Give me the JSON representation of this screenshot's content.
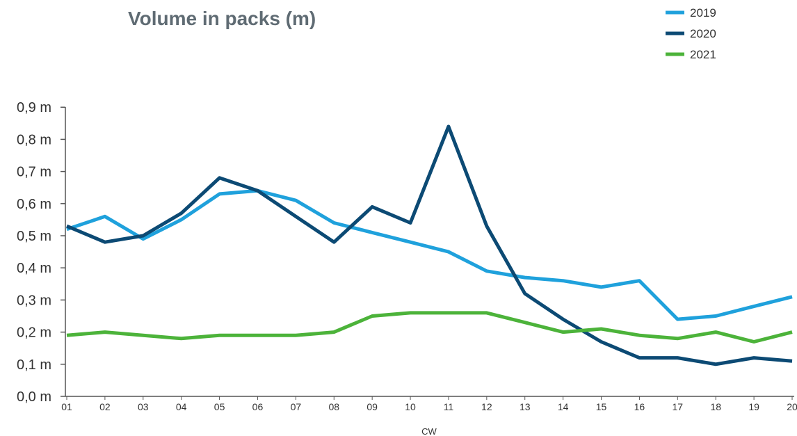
{
  "chart_data": {
    "type": "line",
    "title": "Volume in packs (m)",
    "xlabel": "CW",
    "ylabel": "",
    "ylim": [
      0,
      0.9
    ],
    "y_ticks": [
      0.0,
      0.1,
      0.2,
      0.3,
      0.4,
      0.5,
      0.6,
      0.7,
      0.8,
      0.9
    ],
    "y_tick_labels": [
      "0,0 m",
      "0,1 m",
      "0,2 m",
      "0,3 m",
      "0,4 m",
      "0,5 m",
      "0,6 m",
      "0,7 m",
      "0,8 m",
      "0,9 m"
    ],
    "categories": [
      "01",
      "02",
      "03",
      "04",
      "05",
      "06",
      "07",
      "08",
      "09",
      "10",
      "11",
      "12",
      "13",
      "14",
      "15",
      "16",
      "17",
      "18",
      "19",
      "20"
    ],
    "grid": false,
    "legend_position": "top-right",
    "series": [
      {
        "name": "2019",
        "color": "#1fa1dc",
        "values": [
          0.52,
          0.56,
          0.49,
          0.55,
          0.63,
          0.64,
          0.61,
          0.54,
          0.51,
          0.48,
          0.45,
          0.39,
          0.37,
          0.36,
          0.34,
          0.36,
          0.24,
          0.25,
          0.28,
          0.31
        ]
      },
      {
        "name": "2020",
        "color": "#0c4a74",
        "values": [
          0.53,
          0.48,
          0.5,
          0.57,
          0.68,
          0.64,
          0.56,
          0.48,
          0.59,
          0.54,
          0.84,
          0.53,
          0.32,
          0.24,
          0.17,
          0.12,
          0.12,
          0.1,
          0.12,
          0.11
        ]
      },
      {
        "name": "2021",
        "color": "#4cb33a",
        "values": [
          0.19,
          0.2,
          0.19,
          0.18,
          0.19,
          0.19,
          0.19,
          0.2,
          0.25,
          0.26,
          0.26,
          0.26,
          0.23,
          0.2,
          0.21,
          0.19,
          0.18,
          0.2,
          0.17,
          0.2
        ]
      }
    ]
  }
}
